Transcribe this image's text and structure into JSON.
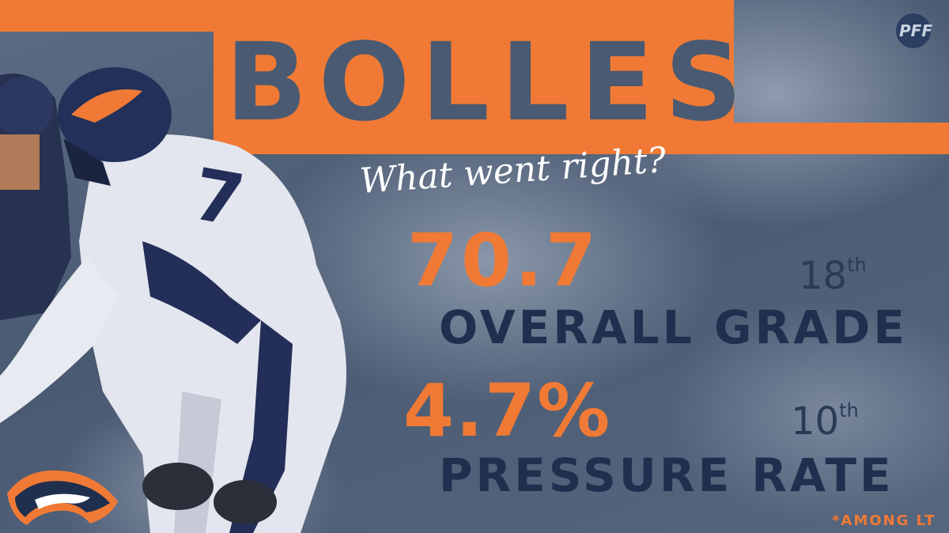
{
  "header": {
    "title": "BOLLES",
    "brand_logo_text": "PFF"
  },
  "subtitle": "What went right?",
  "stats": [
    {
      "value": "70.7",
      "rank_number": "18",
      "rank_suffix": "th",
      "label": "OVERALL GRADE"
    },
    {
      "value": "4.7%",
      "rank_number": "10",
      "rank_suffix": "th",
      "label": "PRESSURE RATE"
    }
  ],
  "footnote": "*AMONG LT",
  "colors": {
    "accent_orange": "#f07a35",
    "navy": "#1f2f4e",
    "background_slate": "#4a5a72"
  }
}
